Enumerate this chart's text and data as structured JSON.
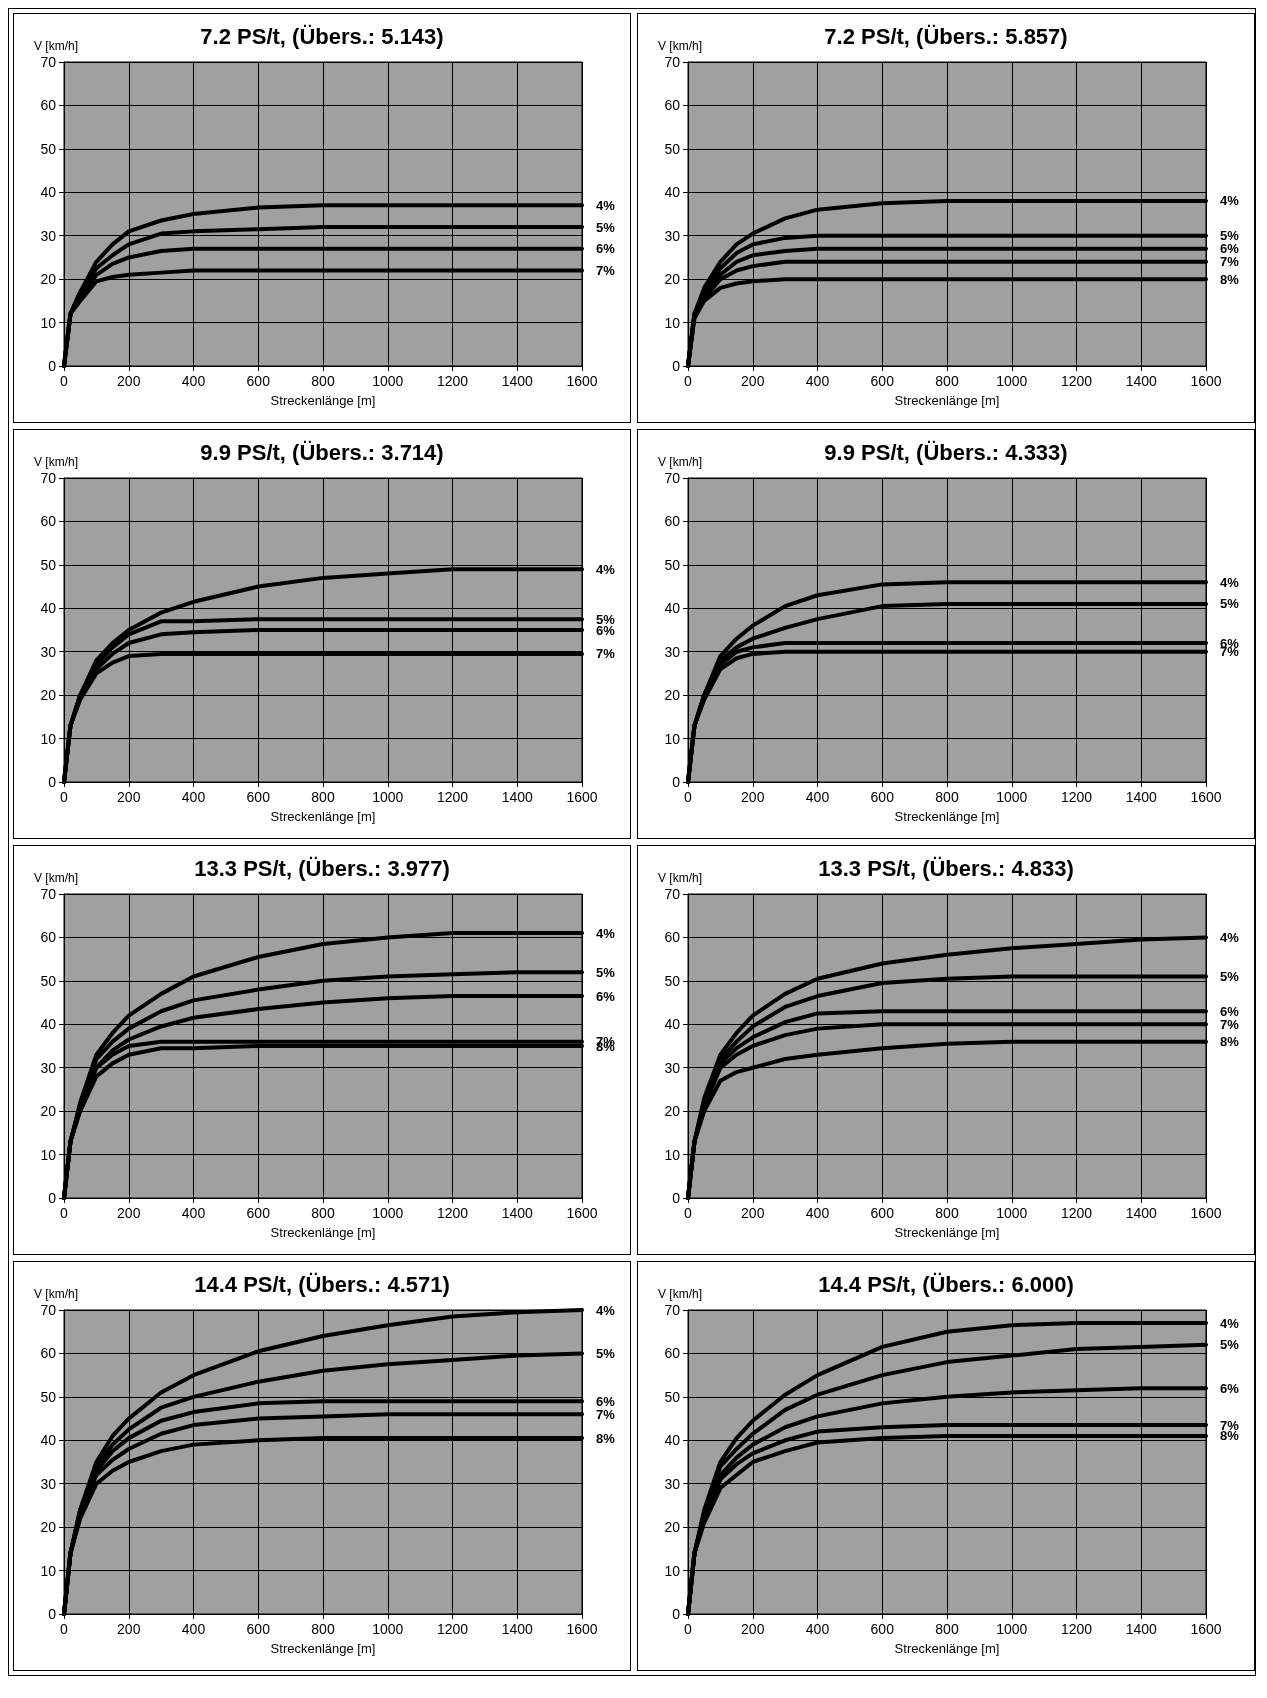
{
  "chart_data": [
    {
      "type": "line",
      "title": "7.2 PS/t, (Übers.: 5.143)",
      "xlabel": "Streckenlänge [m]",
      "ylabel": "V [km/h]",
      "x": [
        0,
        20,
        50,
        100,
        150,
        200,
        300,
        400,
        600,
        800,
        1000,
        1200,
        1400,
        1600
      ],
      "xlim": [
        0,
        1600
      ],
      "xticks": [
        0,
        200,
        400,
        600,
        800,
        1000,
        1200,
        1400,
        1600
      ],
      "ylim": [
        0,
        70
      ],
      "yticks": [
        0,
        10,
        20,
        30,
        40,
        50,
        60,
        70
      ],
      "grid": true,
      "series": [
        {
          "name": "4%",
          "color": "#000000",
          "values": [
            0,
            12,
            17,
            24,
            28,
            31,
            33.5,
            35,
            36.5,
            37,
            37,
            37,
            37,
            37
          ]
        },
        {
          "name": "5%",
          "color": "#000000",
          "values": [
            0,
            12,
            17,
            22.5,
            25.5,
            28,
            30.5,
            31,
            31.5,
            32,
            32,
            32,
            32,
            32
          ]
        },
        {
          "name": "6%",
          "color": "#000000",
          "values": [
            0,
            12,
            16,
            21,
            23.5,
            25,
            26.5,
            27,
            27,
            27,
            27,
            27,
            27,
            27
          ]
        },
        {
          "name": "7%",
          "color": "#000000",
          "values": [
            0,
            12,
            15,
            19.5,
            20.5,
            21,
            21.5,
            22,
            22,
            22,
            22,
            22,
            22,
            22
          ]
        }
      ]
    },
    {
      "type": "line",
      "title": "7.2 PS/t, (Übers.: 5.857)",
      "xlabel": "Streckenlänge [m]",
      "ylabel": "V [km/h]",
      "x": [
        0,
        20,
        50,
        100,
        150,
        200,
        300,
        400,
        600,
        800,
        1000,
        1200,
        1400,
        1600
      ],
      "xlim": [
        0,
        1600
      ],
      "xticks": [
        0,
        200,
        400,
        600,
        800,
        1000,
        1200,
        1400,
        1600
      ],
      "ylim": [
        0,
        70
      ],
      "yticks": [
        0,
        10,
        20,
        30,
        40,
        50,
        60,
        70
      ],
      "grid": true,
      "series": [
        {
          "name": "4%",
          "color": "#000000",
          "values": [
            0,
            12,
            18,
            24,
            28,
            30.5,
            34,
            36,
            37.5,
            38,
            38,
            38,
            38,
            38
          ]
        },
        {
          "name": "5%",
          "color": "#000000",
          "values": [
            0,
            12,
            17,
            22.5,
            26,
            28,
            29.5,
            30,
            30,
            30,
            30,
            30,
            30,
            30
          ]
        },
        {
          "name": "6%",
          "color": "#000000",
          "values": [
            0,
            12,
            16,
            21,
            24,
            25.5,
            26.5,
            27,
            27,
            27,
            27,
            27,
            27,
            27
          ]
        },
        {
          "name": "7%",
          "color": "#000000",
          "values": [
            0,
            12,
            15.5,
            20,
            22,
            23,
            24,
            24,
            24,
            24,
            24,
            24,
            24,
            24
          ]
        },
        {
          "name": "8%",
          "color": "#000000",
          "values": [
            0,
            11,
            15,
            18,
            19,
            19.5,
            20,
            20,
            20,
            20,
            20,
            20,
            20,
            20
          ]
        }
      ]
    },
    {
      "type": "line",
      "title": "9.9 PS/t, (Übers.: 3.714)",
      "xlabel": "Streckenlänge [m]",
      "ylabel": "V [km/h]",
      "x": [
        0,
        20,
        50,
        100,
        150,
        200,
        300,
        400,
        600,
        800,
        1000,
        1200,
        1400,
        1600
      ],
      "xlim": [
        0,
        1600
      ],
      "xticks": [
        0,
        200,
        400,
        600,
        800,
        1000,
        1200,
        1400,
        1600
      ],
      "ylim": [
        0,
        70
      ],
      "yticks": [
        0,
        10,
        20,
        30,
        40,
        50,
        60,
        70
      ],
      "grid": true,
      "series": [
        {
          "name": "4%",
          "color": "#000000",
          "values": [
            0,
            13,
            20,
            28,
            32,
            35,
            39,
            41.5,
            45,
            47,
            48,
            49,
            49,
            49
          ]
        },
        {
          "name": "5%",
          "color": "#000000",
          "values": [
            0,
            13,
            20,
            27,
            31,
            34,
            37,
            37,
            37.5,
            37.5,
            37.5,
            37.5,
            37.5,
            37.5
          ]
        },
        {
          "name": "6%",
          "color": "#000000",
          "values": [
            0,
            13,
            20,
            26,
            29.5,
            32,
            34,
            34.5,
            35,
            35,
            35,
            35,
            35,
            35
          ]
        },
        {
          "name": "7%",
          "color": "#000000",
          "values": [
            0,
            13,
            19,
            25,
            27.5,
            29,
            29.5,
            29.5,
            29.5,
            29.5,
            29.5,
            29.5,
            29.5,
            29.5
          ]
        }
      ]
    },
    {
      "type": "line",
      "title": "9.9 PS/t, (Übers.: 4.333)",
      "xlabel": "Streckenlänge [m]",
      "ylabel": "V [km/h]",
      "x": [
        0,
        20,
        50,
        100,
        150,
        200,
        300,
        400,
        600,
        800,
        1000,
        1200,
        1400,
        1600
      ],
      "xlim": [
        0,
        1600
      ],
      "xticks": [
        0,
        200,
        400,
        600,
        800,
        1000,
        1200,
        1400,
        1600
      ],
      "ylim": [
        0,
        70
      ],
      "yticks": [
        0,
        10,
        20,
        30,
        40,
        50,
        60,
        70
      ],
      "grid": true,
      "series": [
        {
          "name": "4%",
          "color": "#000000",
          "values": [
            0,
            13,
            20,
            29,
            33,
            36,
            40.5,
            43,
            45.5,
            46,
            46,
            46,
            46,
            46
          ]
        },
        {
          "name": "5%",
          "color": "#000000",
          "values": [
            0,
            13,
            20,
            28,
            31,
            33,
            35.5,
            37.5,
            40.5,
            41,
            41,
            41,
            41,
            41
          ]
        },
        {
          "name": "6%",
          "color": "#000000",
          "values": [
            0,
            13,
            20,
            27,
            30,
            31,
            32,
            32,
            32,
            32,
            32,
            32,
            32,
            32
          ]
        },
        {
          "name": "7%",
          "color": "#000000",
          "values": [
            0,
            13,
            19,
            26,
            28.5,
            29.5,
            30,
            30,
            30,
            30,
            30,
            30,
            30,
            30
          ]
        }
      ]
    },
    {
      "type": "line",
      "title": "13.3 PS/t, (Übers.: 3.977)",
      "xlabel": "Streckenlänge [m]",
      "ylabel": "V [km/h]",
      "x": [
        0,
        20,
        50,
        100,
        150,
        200,
        300,
        400,
        600,
        800,
        1000,
        1200,
        1400,
        1600
      ],
      "xlim": [
        0,
        1600
      ],
      "xticks": [
        0,
        200,
        400,
        600,
        800,
        1000,
        1200,
        1400,
        1600
      ],
      "ylim": [
        0,
        70
      ],
      "yticks": [
        0,
        10,
        20,
        30,
        40,
        50,
        60,
        70
      ],
      "grid": true,
      "series": [
        {
          "name": "4%",
          "color": "#000000",
          "values": [
            0,
            13,
            22,
            33,
            38,
            42,
            47,
            51,
            55.5,
            58.5,
            60,
            61,
            61,
            61
          ]
        },
        {
          "name": "5%",
          "color": "#000000",
          "values": [
            0,
            13,
            21,
            32,
            36,
            39,
            43,
            45.5,
            48,
            50,
            51,
            51.5,
            52,
            52
          ]
        },
        {
          "name": "6%",
          "color": "#000000",
          "values": [
            0,
            13,
            21,
            30,
            34,
            36.5,
            39.5,
            41.5,
            43.5,
            45,
            46,
            46.5,
            46.5,
            46.5
          ]
        },
        {
          "name": "7%",
          "color": "#000000",
          "values": [
            0,
            13,
            21,
            30,
            33,
            35,
            36,
            36,
            36,
            36,
            36,
            36,
            36,
            36
          ]
        },
        {
          "name": "8%",
          "color": "#000000",
          "values": [
            0,
            13,
            20,
            28,
            31,
            33,
            34.5,
            34.5,
            35,
            35,
            35,
            35,
            35,
            35
          ]
        }
      ]
    },
    {
      "type": "line",
      "title": "13.3 PS/t, (Übers.: 4.833)",
      "xlabel": "Streckenlänge [m]",
      "ylabel": "V [km/h]",
      "x": [
        0,
        20,
        50,
        100,
        150,
        200,
        300,
        400,
        600,
        800,
        1000,
        1200,
        1400,
        1600
      ],
      "xlim": [
        0,
        1600
      ],
      "xticks": [
        0,
        200,
        400,
        600,
        800,
        1000,
        1200,
        1400,
        1600
      ],
      "ylim": [
        0,
        70
      ],
      "yticks": [
        0,
        10,
        20,
        30,
        40,
        50,
        60,
        70
      ],
      "grid": true,
      "series": [
        {
          "name": "4%",
          "color": "#000000",
          "values": [
            0,
            13,
            23,
            33,
            38,
            42,
            47,
            50.5,
            54,
            56,
            57.5,
            58.5,
            59.5,
            60
          ]
        },
        {
          "name": "5%",
          "color": "#000000",
          "values": [
            0,
            13,
            22,
            32,
            36,
            39.5,
            44,
            46.5,
            49.5,
            50.5,
            51,
            51,
            51,
            51
          ]
        },
        {
          "name": "6%",
          "color": "#000000",
          "values": [
            0,
            13,
            22,
            31,
            34.5,
            37,
            40.5,
            42.5,
            43,
            43,
            43,
            43,
            43,
            43
          ]
        },
        {
          "name": "7%",
          "color": "#000000",
          "values": [
            0,
            13,
            21,
            30,
            33,
            35,
            37.5,
            39,
            40,
            40,
            40,
            40,
            40,
            40
          ]
        },
        {
          "name": "8%",
          "color": "#000000",
          "values": [
            0,
            13,
            20,
            27,
            29,
            30,
            32,
            33,
            34.5,
            35.5,
            36,
            36,
            36,
            36
          ]
        }
      ]
    },
    {
      "type": "line",
      "title": "14.4 PS/t, (Übers.: 4.571)",
      "xlabel": "Streckenlänge [m]",
      "ylabel": "V [km/h]",
      "x": [
        0,
        20,
        50,
        100,
        150,
        200,
        300,
        400,
        600,
        800,
        1000,
        1200,
        1400,
        1600
      ],
      "xlim": [
        0,
        1600
      ],
      "xticks": [
        0,
        200,
        400,
        600,
        800,
        1000,
        1200,
        1400,
        1600
      ],
      "ylim": [
        0,
        70
      ],
      "yticks": [
        0,
        10,
        20,
        30,
        40,
        50,
        60,
        70
      ],
      "grid": true,
      "series": [
        {
          "name": "4%",
          "color": "#000000",
          "values": [
            0,
            14,
            24,
            35,
            41,
            45,
            51,
            55,
            60.5,
            64,
            66.5,
            68.5,
            69.5,
            70
          ]
        },
        {
          "name": "5%",
          "color": "#000000",
          "values": [
            0,
            14,
            24,
            34,
            39,
            42.5,
            47.5,
            50,
            53.5,
            56,
            57.5,
            58.5,
            59.5,
            60
          ]
        },
        {
          "name": "6%",
          "color": "#000000",
          "values": [
            0,
            14,
            23,
            33,
            37.5,
            40.5,
            44.5,
            46.5,
            48.5,
            49,
            49,
            49,
            49,
            49
          ]
        },
        {
          "name": "7%",
          "color": "#000000",
          "values": [
            0,
            14,
            23,
            32,
            35.5,
            38,
            41.5,
            43.5,
            45,
            45.5,
            46,
            46,
            46,
            46
          ]
        },
        {
          "name": "8%",
          "color": "#000000",
          "values": [
            0,
            14,
            22,
            30,
            33,
            35,
            37.5,
            39,
            40,
            40.5,
            40.5,
            40.5,
            40.5,
            40.5
          ]
        }
      ]
    },
    {
      "type": "line",
      "title": "14.4 PS/t, (Übers.: 6.000)",
      "xlabel": "Streckenlänge [m]",
      "ylabel": "V [km/h]",
      "x": [
        0,
        20,
        50,
        100,
        150,
        200,
        300,
        400,
        600,
        800,
        1000,
        1200,
        1400,
        1600
      ],
      "xlim": [
        0,
        1600
      ],
      "xticks": [
        0,
        200,
        400,
        600,
        800,
        1000,
        1200,
        1400,
        1600
      ],
      "ylim": [
        0,
        70
      ],
      "yticks": [
        0,
        10,
        20,
        30,
        40,
        50,
        60,
        70
      ],
      "grid": true,
      "series": [
        {
          "name": "4%",
          "color": "#000000",
          "values": [
            0,
            14,
            24,
            35,
            40.5,
            44.5,
            50.5,
            55,
            61.5,
            65,
            66.5,
            67,
            67,
            67
          ]
        },
        {
          "name": "5%",
          "color": "#000000",
          "values": [
            0,
            14,
            23,
            34,
            38,
            41.5,
            47,
            50.5,
            55,
            58,
            59.5,
            61,
            61.5,
            62
          ]
        },
        {
          "name": "6%",
          "color": "#000000",
          "values": [
            0,
            14,
            23,
            32,
            36,
            39,
            43,
            45.5,
            48.5,
            50,
            51,
            51.5,
            52,
            52
          ]
        },
        {
          "name": "7%",
          "color": "#000000",
          "values": [
            0,
            14,
            22,
            31,
            34.5,
            37,
            40,
            42,
            43,
            43.5,
            43.5,
            43.5,
            43.5,
            43.5
          ]
        },
        {
          "name": "8%",
          "color": "#000000",
          "values": [
            0,
            14,
            21,
            29,
            32,
            35,
            37.5,
            39.5,
            40.5,
            41,
            41,
            41,
            41,
            41
          ]
        }
      ]
    }
  ]
}
